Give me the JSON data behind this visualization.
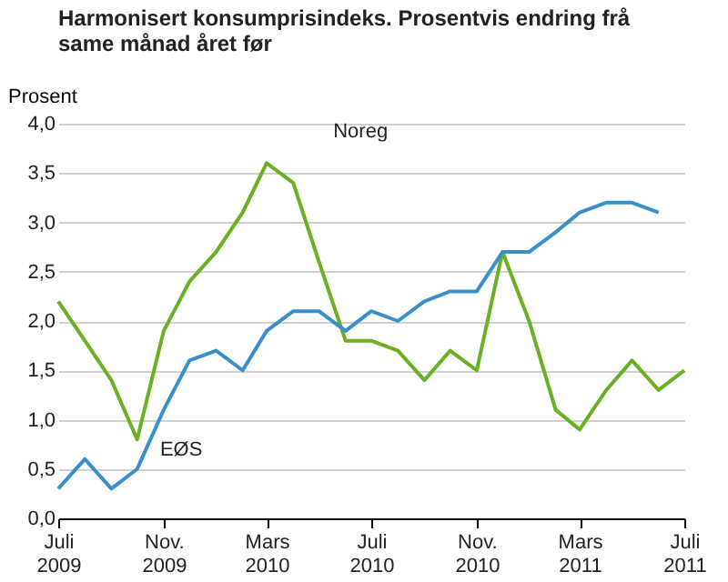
{
  "chart_data": {
    "type": "line",
    "title": "Harmonisert konsumprisindeks. Prosentvis endring frå same månad året før",
    "ylabel": "Prosent",
    "x": [
      "2009-07",
      "2009-08",
      "2009-09",
      "2009-10",
      "2009-11",
      "2009-12",
      "2010-01",
      "2010-02",
      "2010-03",
      "2010-04",
      "2010-05",
      "2010-06",
      "2010-07",
      "2010-08",
      "2010-09",
      "2010-10",
      "2010-11",
      "2010-12",
      "2011-01",
      "2011-02",
      "2011-03",
      "2011-04",
      "2011-05",
      "2011-06",
      "2011-07"
    ],
    "series": [
      {
        "name": "Noreg",
        "color": "#6ab023",
        "values": [
          2.2,
          1.8,
          1.4,
          0.8,
          1.9,
          2.4,
          2.7,
          3.1,
          3.6,
          3.4,
          2.6,
          1.8,
          1.8,
          1.7,
          1.4,
          1.7,
          1.5,
          2.7,
          2.0,
          1.1,
          0.9,
          1.3,
          1.6,
          1.3,
          1.5
        ]
      },
      {
        "name": "EØS",
        "color": "#3a8fc7",
        "values": [
          0.3,
          0.6,
          0.3,
          0.5,
          1.1,
          1.6,
          1.7,
          1.5,
          1.9,
          2.1,
          2.1,
          1.9,
          2.1,
          2.0,
          2.2,
          2.3,
          2.3,
          2.7,
          2.7,
          2.9,
          3.1,
          3.2,
          3.2,
          3.1,
          null
        ]
      }
    ],
    "xlim": [
      "2009-07",
      "2011-07"
    ],
    "xticks": [
      {
        "value": "2009-07",
        "label": "Juli 2009"
      },
      {
        "value": "2009-11",
        "label": "Nov. 2009"
      },
      {
        "value": "2010-03",
        "label": "Mars 2010"
      },
      {
        "value": "2010-07",
        "label": "Juli 2010"
      },
      {
        "value": "2010-11",
        "label": "Nov. 2010"
      },
      {
        "value": "2011-03",
        "label": "Mars 2011"
      },
      {
        "value": "2011-07",
        "label": "Juli 2011"
      }
    ],
    "ylim": [
      0,
      4
    ],
    "yticks": [
      {
        "value": 0,
        "label": "0,0"
      },
      {
        "value": 0.5,
        "label": "0,5"
      },
      {
        "value": 1,
        "label": "1,0"
      },
      {
        "value": 1.5,
        "label": "1,5"
      },
      {
        "value": 2,
        "label": "2,0"
      },
      {
        "value": 2.5,
        "label": "2,5"
      },
      {
        "value": 3,
        "label": "3,0"
      },
      {
        "value": 3.5,
        "label": "3,5"
      },
      {
        "value": 4,
        "label": "4,0"
      }
    ],
    "grid": "y"
  }
}
